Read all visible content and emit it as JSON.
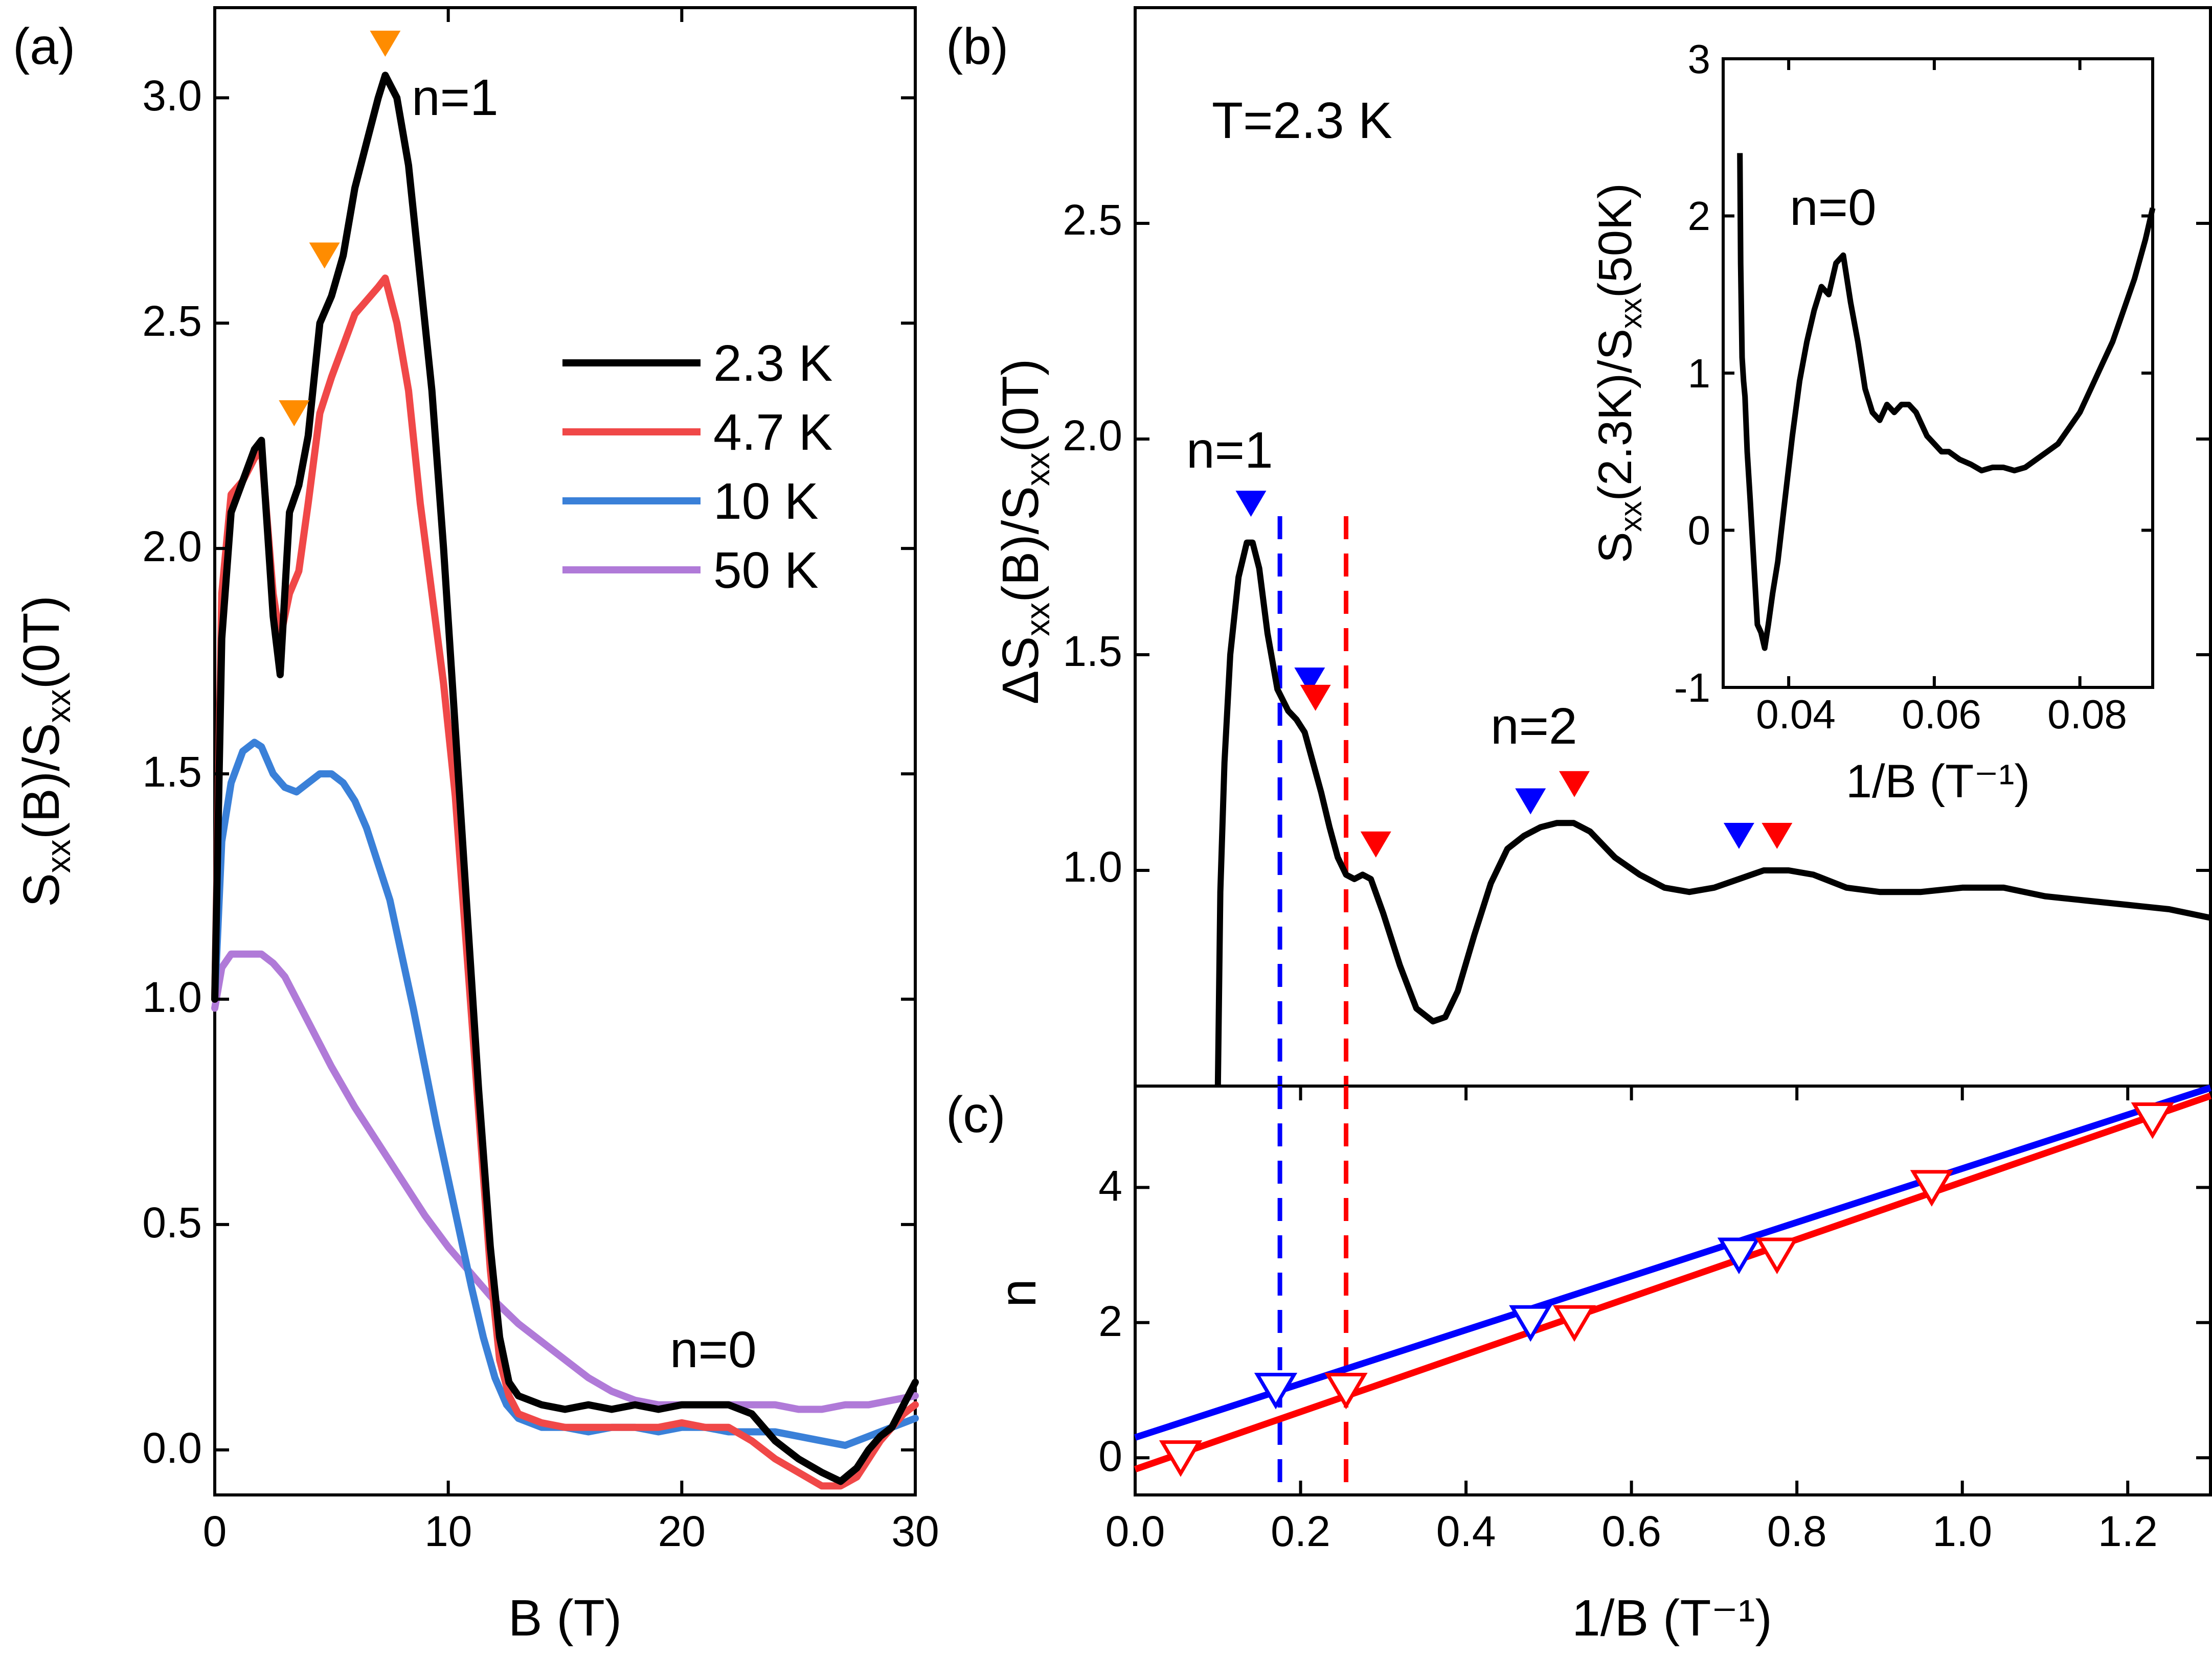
{
  "colors": {
    "k23": "#000000",
    "k47": "#f04848",
    "k10": "#3a80d8",
    "k50": "#b07ad8",
    "orange": "#ff8c00",
    "blue": "#0000ff",
    "red": "#ff0000"
  },
  "chart_data": [
    {
      "type": "line",
      "panel_label": "(a)",
      "xlabel": "B (T)",
      "ylabel": {
        "base": "S",
        "sub": "xx",
        "mid": "(B)/S",
        "sub2": "xx",
        "end": "(0T)"
      },
      "xlim": [
        0,
        30
      ],
      "ylim": [
        -0.1,
        3.2
      ],
      "xticks": [
        0,
        10,
        20,
        30
      ],
      "yticks": [
        0.0,
        0.5,
        1.0,
        1.5,
        2.0,
        2.5,
        3.0
      ],
      "xtick_labels": [
        "0",
        "10",
        "20",
        "30"
      ],
      "ytick_labels": [
        "0.0",
        "0.5",
        "1.0",
        "1.5",
        "2.0",
        "2.5",
        "3.0"
      ],
      "legend": [
        "2.3 K",
        "4.7 K",
        "10 K",
        "50 K"
      ],
      "annotations": [
        "n=1",
        "n=0"
      ],
      "markers": [
        {
          "x": 3.4,
          "y": 2.3
        },
        {
          "x": 4.7,
          "y": 2.65
        },
        {
          "x": 7.3,
          "y": 3.12
        }
      ],
      "series": [
        {
          "name": "2.3 K",
          "color": "k23",
          "x": [
            0,
            0.3,
            0.7,
            1.2,
            1.7,
            2.0,
            2.5,
            2.8,
            3.2,
            3.6,
            4.0,
            4.5,
            5.0,
            5.5,
            6.0,
            6.5,
            7.0,
            7.3,
            7.8,
            8.3,
            8.8,
            9.3,
            9.8,
            10.3,
            10.8,
            11.3,
            11.8,
            12.2,
            12.6,
            13.0,
            14,
            15,
            16,
            17,
            18,
            19,
            20,
            21,
            22,
            23,
            24,
            25,
            26,
            26.8,
            27.5,
            28,
            28.5,
            29,
            29.5,
            30
          ],
          "y": [
            1.0,
            1.8,
            2.08,
            2.15,
            2.22,
            2.24,
            1.85,
            1.72,
            2.08,
            2.14,
            2.25,
            2.5,
            2.56,
            2.65,
            2.8,
            2.9,
            3.0,
            3.05,
            3.0,
            2.85,
            2.6,
            2.35,
            2.0,
            1.6,
            1.2,
            0.8,
            0.45,
            0.25,
            0.15,
            0.12,
            0.1,
            0.09,
            0.1,
            0.09,
            0.1,
            0.09,
            0.1,
            0.1,
            0.1,
            0.08,
            0.02,
            -0.02,
            -0.05,
            -0.07,
            -0.04,
            0.0,
            0.03,
            0.05,
            0.1,
            0.15
          ]
        },
        {
          "name": "4.7 K",
          "color": "k47",
          "x": [
            0,
            0.3,
            0.7,
            1.2,
            1.7,
            2.0,
            2.5,
            2.8,
            3.2,
            3.6,
            4.0,
            4.5,
            5.0,
            5.5,
            6.0,
            6.5,
            7.0,
            7.3,
            7.8,
            8.3,
            8.8,
            9.3,
            9.8,
            10.3,
            10.8,
            11.3,
            11.8,
            12.2,
            12.6,
            13.0,
            14,
            15,
            16,
            17,
            18,
            19,
            20,
            21,
            22,
            23,
            24,
            25,
            26,
            26.8,
            27.5,
            28,
            28.5,
            29,
            29.5,
            30
          ],
          "y": [
            1.0,
            1.9,
            2.12,
            2.15,
            2.2,
            2.22,
            1.9,
            1.8,
            1.9,
            1.95,
            2.1,
            2.3,
            2.38,
            2.45,
            2.52,
            2.55,
            2.58,
            2.6,
            2.5,
            2.35,
            2.1,
            1.9,
            1.7,
            1.45,
            1.1,
            0.75,
            0.4,
            0.2,
            0.12,
            0.08,
            0.06,
            0.05,
            0.05,
            0.05,
            0.05,
            0.05,
            0.06,
            0.05,
            0.05,
            0.02,
            -0.02,
            -0.05,
            -0.08,
            -0.08,
            -0.06,
            -0.02,
            0.02,
            0.05,
            0.08,
            0.1
          ]
        },
        {
          "name": "10 K",
          "color": "k10",
          "x": [
            0,
            0.3,
            0.7,
            1.2,
            1.7,
            2.0,
            2.5,
            3.0,
            3.5,
            4.0,
            4.5,
            5.0,
            5.5,
            6.0,
            6.5,
            7.0,
            7.5,
            8.0,
            8.5,
            9.0,
            9.5,
            10.0,
            10.5,
            11.0,
            11.5,
            12.0,
            12.5,
            13.0,
            14,
            15,
            16,
            17,
            18,
            19,
            20,
            21,
            22,
            23,
            24,
            25,
            26,
            27,
            28,
            29,
            30
          ],
          "y": [
            1.0,
            1.35,
            1.48,
            1.55,
            1.57,
            1.56,
            1.5,
            1.47,
            1.46,
            1.48,
            1.5,
            1.5,
            1.48,
            1.44,
            1.38,
            1.3,
            1.22,
            1.1,
            0.98,
            0.85,
            0.72,
            0.6,
            0.48,
            0.36,
            0.25,
            0.16,
            0.1,
            0.07,
            0.05,
            0.05,
            0.04,
            0.05,
            0.05,
            0.04,
            0.05,
            0.05,
            0.04,
            0.04,
            0.04,
            0.03,
            0.02,
            0.01,
            0.03,
            0.05,
            0.07
          ]
        },
        {
          "name": "50 K",
          "color": "k50",
          "x": [
            0,
            0.3,
            0.7,
            1.2,
            1.7,
            2.0,
            2.5,
            3.0,
            4.0,
            5.0,
            6.0,
            7.0,
            8.0,
            9.0,
            10.0,
            11.0,
            12.0,
            13.0,
            14,
            15,
            16,
            17,
            18,
            19,
            20,
            21,
            22,
            23,
            24,
            25,
            26,
            27,
            28,
            29,
            30
          ],
          "y": [
            0.98,
            1.07,
            1.1,
            1.1,
            1.1,
            1.1,
            1.08,
            1.05,
            0.95,
            0.85,
            0.76,
            0.68,
            0.6,
            0.52,
            0.45,
            0.39,
            0.33,
            0.28,
            0.24,
            0.2,
            0.16,
            0.13,
            0.11,
            0.1,
            0.1,
            0.1,
            0.1,
            0.1,
            0.1,
            0.09,
            0.09,
            0.1,
            0.1,
            0.11,
            0.12
          ]
        }
      ]
    },
    {
      "type": "line",
      "panel_label": "(b)",
      "xlim": [
        0,
        1.3
      ],
      "ylim": [
        0.5,
        3.0
      ],
      "yticks": [
        1.0,
        1.5,
        2.0,
        2.5
      ],
      "ytick_labels": [
        "1.0",
        "1.5",
        "2.0",
        "2.5"
      ],
      "ylabel": {
        "pre": "ΔS",
        "sub": "xx",
        "mid": "(B)/S",
        "sub2": "xx",
        "end": "(0T)"
      },
      "annotations": [
        "T=2.3 K",
        "n=1",
        "n=2"
      ],
      "vlines": [
        {
          "x": 0.175,
          "color": "blue"
        },
        {
          "x": 0.255,
          "color": "red"
        }
      ],
      "blue_markers": [
        {
          "x": 0.14,
          "y": 1.85
        },
        {
          "x": 0.211,
          "y": 1.44
        },
        {
          "x": 0.478,
          "y": 1.16
        },
        {
          "x": 0.73,
          "y": 1.08
        }
      ],
      "red_markers": [
        {
          "x": 0.218,
          "y": 1.4
        },
        {
          "x": 0.291,
          "y": 1.06
        },
        {
          "x": 0.531,
          "y": 1.2
        },
        {
          "x": 0.776,
          "y": 1.08
        }
      ],
      "series": [
        {
          "name": "2.3 K",
          "color": "k23",
          "x": [
            0.1,
            0.103,
            0.108,
            0.115,
            0.125,
            0.135,
            0.142,
            0.15,
            0.16,
            0.172,
            0.185,
            0.195,
            0.205,
            0.215,
            0.225,
            0.235,
            0.245,
            0.255,
            0.265,
            0.275,
            0.285,
            0.3,
            0.32,
            0.34,
            0.36,
            0.375,
            0.39,
            0.41,
            0.43,
            0.45,
            0.47,
            0.49,
            0.51,
            0.53,
            0.55,
            0.58,
            0.61,
            0.64,
            0.67,
            0.7,
            0.73,
            0.76,
            0.79,
            0.82,
            0.86,
            0.9,
            0.95,
            1.0,
            1.05,
            1.1,
            1.15,
            1.2,
            1.25,
            1.3
          ],
          "y": [
            0.5,
            0.95,
            1.25,
            1.5,
            1.68,
            1.76,
            1.76,
            1.7,
            1.55,
            1.42,
            1.37,
            1.35,
            1.32,
            1.25,
            1.18,
            1.1,
            1.03,
            0.99,
            0.98,
            0.99,
            0.98,
            0.9,
            0.78,
            0.68,
            0.65,
            0.66,
            0.72,
            0.85,
            0.97,
            1.05,
            1.08,
            1.1,
            1.11,
            1.11,
            1.09,
            1.03,
            0.99,
            0.96,
            0.95,
            0.96,
            0.98,
            1.0,
            1.0,
            0.99,
            0.96,
            0.95,
            0.95,
            0.96,
            0.96,
            0.94,
            0.93,
            0.92,
            0.91,
            0.89
          ]
        }
      ]
    },
    {
      "type": "line",
      "panel_label": "inset",
      "xlabel": "1/B (T⁻¹)",
      "ylabel": {
        "base": "S",
        "sub": "xx",
        "mid": "(2.3K)/S",
        "sub2": "xx",
        "end": "(50K)"
      },
      "xlim": [
        0.031,
        0.09
      ],
      "ylim": [
        -1,
        3
      ],
      "xticks": [
        0.04,
        0.06,
        0.08
      ],
      "yticks": [
        -1,
        0,
        1,
        2,
        3
      ],
      "xtick_labels": [
        "0.04",
        "0.06",
        "0.08"
      ],
      "ytick_labels": [
        "-1",
        "0",
        "1",
        "2",
        "3"
      ],
      "annotations": [
        "n=0"
      ],
      "series": [
        {
          "name": "2.3K/50K",
          "color": "k23",
          "x": [
            0.0333,
            0.0334,
            0.0336,
            0.0338,
            0.034,
            0.0343,
            0.0347,
            0.0352,
            0.0357,
            0.0362,
            0.0367,
            0.0372,
            0.0378,
            0.0385,
            0.0395,
            0.0405,
            0.0415,
            0.0425,
            0.0435,
            0.0445,
            0.0455,
            0.0465,
            0.0475,
            0.0485,
            0.0495,
            0.0505,
            0.0515,
            0.0525,
            0.0535,
            0.0545,
            0.0555,
            0.0565,
            0.0575,
            0.059,
            0.06,
            0.061,
            0.062,
            0.0635,
            0.065,
            0.0665,
            0.068,
            0.0695,
            0.071,
            0.0725,
            0.074,
            0.0755,
            0.077,
            0.0785,
            0.08,
            0.0815,
            0.083,
            0.0845,
            0.086,
            0.0875,
            0.089,
            0.09
          ],
          "y": [
            2.4,
            1.7,
            1.1,
            0.95,
            0.85,
            0.5,
            0.2,
            -0.2,
            -0.6,
            -0.65,
            -0.75,
            -0.6,
            -0.4,
            -0.2,
            0.2,
            0.6,
            0.95,
            1.2,
            1.4,
            1.55,
            1.5,
            1.7,
            1.75,
            1.45,
            1.2,
            0.9,
            0.75,
            0.7,
            0.8,
            0.75,
            0.8,
            0.8,
            0.75,
            0.6,
            0.55,
            0.5,
            0.5,
            0.45,
            0.42,
            0.38,
            0.4,
            0.4,
            0.38,
            0.4,
            0.45,
            0.5,
            0.55,
            0.65,
            0.75,
            0.9,
            1.05,
            1.2,
            1.4,
            1.6,
            1.85,
            2.05
          ]
        }
      ]
    },
    {
      "type": "scatter",
      "panel_label": "(c)",
      "xlabel": "1/B (T⁻¹)",
      "ylabel": "n",
      "xlim": [
        0,
        1.3
      ],
      "ylim": [
        -0.55,
        5.5
      ],
      "xticks": [
        0.0,
        0.2,
        0.4,
        0.6,
        0.8,
        1.0,
        1.2
      ],
      "yticks": [
        0,
        2,
        4
      ],
      "xtick_labels": [
        "0.0",
        "0.2",
        "0.4",
        "0.6",
        "0.8",
        "1.0",
        "1.2"
      ],
      "ytick_labels": [
        "0",
        "2",
        "4"
      ],
      "series": [
        {
          "name": "blue points",
          "color": "blue",
          "x": [
            0.17,
            0.478,
            0.73
          ],
          "y": [
            1,
            2,
            3
          ],
          "fit": {
            "slope": 3.98,
            "intercept": 0.3
          }
        },
        {
          "name": "red points",
          "color": "red",
          "x": [
            0.055,
            0.255,
            0.531,
            0.776,
            0.963,
            1.23
          ],
          "y": [
            0,
            1,
            2,
            3,
            4,
            5
          ],
          "fit": {
            "slope": 4.25,
            "intercept": -0.17
          }
        }
      ]
    }
  ]
}
